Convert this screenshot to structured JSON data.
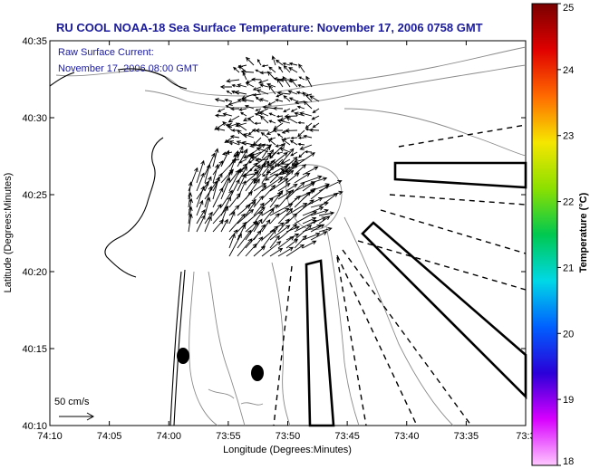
{
  "title": "RU COOL  NOAA-18  Sea Surface Temperature:  November 17, 2006 0758 GMT",
  "current_note": {
    "line1": "Raw Surface Current:",
    "line2": "November 17, 2006 08:00 GMT"
  },
  "x_axis": {
    "label": "Longitude (Degrees:Minutes)",
    "ticks": [
      "74:10",
      "74:05",
      "74:00",
      "73:55",
      "73:50",
      "73:45",
      "73:40",
      "73:35",
      "73:3"
    ]
  },
  "y_axis": {
    "label": "Latitude (Degrees:Minutes)",
    "ticks": [
      "40:35",
      "40:30",
      "40:25",
      "40:20",
      "40:15",
      "40:10"
    ]
  },
  "colorbar": {
    "label": "Temperature (°C)",
    "ticks": [
      "25",
      "24",
      "23",
      "22",
      "21",
      "20",
      "19",
      "18"
    ],
    "colors": [
      "#7a0000",
      "#e00000",
      "#ff6a00",
      "#f6e600",
      "#8ce000",
      "#00c850",
      "#00d8e6",
      "#0060ff",
      "#2a00d8",
      "#d800ff",
      "#ffc8ff"
    ]
  },
  "scale_label": "50 cm/s"
}
